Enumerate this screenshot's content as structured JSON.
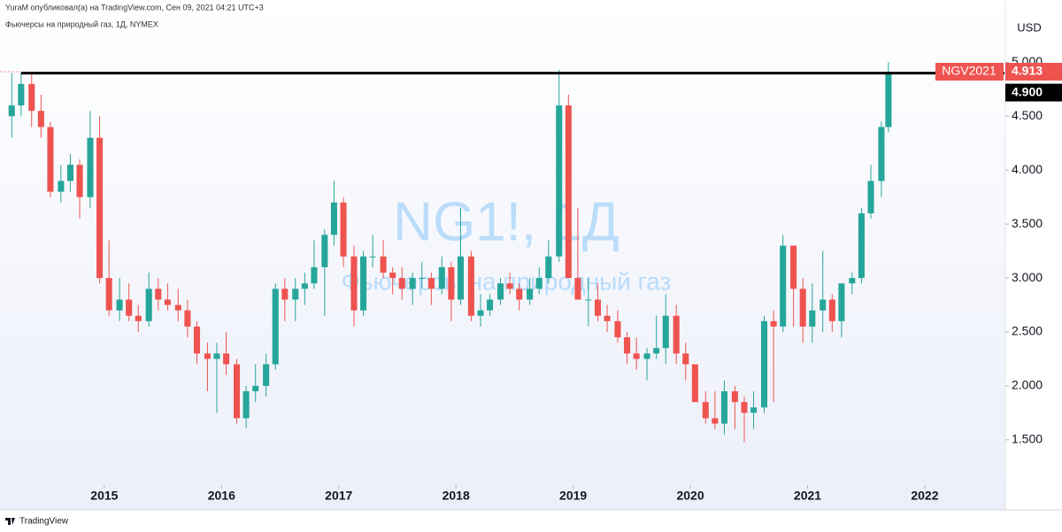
{
  "header": {
    "publisher": "YuraM опубликовал(а) на TradingView.com, Сен 09, 2021 04:21 UTC+3"
  },
  "footer": {
    "brand": "TradingView"
  },
  "chart_data": {
    "type": "candlestick",
    "title": "Фьючерсы на природный газ, 1Д, NYMEX",
    "watermark": "NG1!, 1Д",
    "watermark_subtitle": "Фьючерсы на природный газ",
    "currency": "USD",
    "up_color": "#26a69a",
    "down_color": "#ef5350",
    "x": [
      2014.21,
      2014.29,
      2014.38,
      2014.46,
      2014.54,
      2014.63,
      2014.71,
      2014.79,
      2014.88,
      2014.96,
      2015.04,
      2015.13,
      2015.21,
      2015.29,
      2015.38,
      2015.46,
      2015.54,
      2015.63,
      2015.71,
      2015.79,
      2015.88,
      2015.96,
      2016.04,
      2016.13,
      2016.21,
      2016.29,
      2016.38,
      2016.46,
      2016.54,
      2016.63,
      2016.71,
      2016.79,
      2016.88,
      2016.96,
      2017.04,
      2017.13,
      2017.21,
      2017.29,
      2017.38,
      2017.46,
      2017.54,
      2017.63,
      2017.71,
      2017.79,
      2017.88,
      2017.96,
      2018.04,
      2018.13,
      2018.21,
      2018.29,
      2018.38,
      2018.46,
      2018.54,
      2018.63,
      2018.71,
      2018.79,
      2018.88,
      2018.96,
      2019.04,
      2019.13,
      2019.21,
      2019.29,
      2019.38,
      2019.46,
      2019.54,
      2019.63,
      2019.71,
      2019.79,
      2019.88,
      2019.96,
      2020.04,
      2020.13,
      2020.21,
      2020.29,
      2020.38,
      2020.46,
      2020.54,
      2020.63,
      2020.71,
      2020.79,
      2020.88,
      2020.96,
      2021.04,
      2021.13,
      2021.21,
      2021.29,
      2021.38,
      2021.46,
      2021.54,
      2021.63,
      2021.69
    ],
    "candles": [
      [
        4.5,
        4.9,
        4.3,
        4.6
      ],
      [
        4.6,
        4.9,
        4.5,
        4.8
      ],
      [
        4.8,
        4.9,
        4.4,
        4.55
      ],
      [
        4.55,
        4.7,
        4.3,
        4.4
      ],
      [
        4.4,
        4.45,
        3.75,
        3.8
      ],
      [
        3.8,
        4.05,
        3.7,
        3.9
      ],
      [
        3.9,
        4.15,
        3.8,
        4.05
      ],
      [
        4.05,
        4.1,
        3.55,
        3.75
      ],
      [
        3.75,
        4.55,
        3.65,
        4.3
      ],
      [
        4.3,
        4.5,
        2.95,
        3.0
      ],
      [
        3.0,
        3.35,
        2.65,
        2.7
      ],
      [
        2.7,
        3.0,
        2.6,
        2.8
      ],
      [
        2.8,
        2.95,
        2.6,
        2.65
      ],
      [
        2.65,
        2.75,
        2.5,
        2.6
      ],
      [
        2.6,
        3.05,
        2.55,
        2.9
      ],
      [
        2.9,
        3.0,
        2.7,
        2.8
      ],
      [
        2.8,
        2.95,
        2.7,
        2.75
      ],
      [
        2.75,
        2.9,
        2.6,
        2.7
      ],
      [
        2.7,
        2.8,
        2.45,
        2.55
      ],
      [
        2.55,
        2.6,
        2.2,
        2.3
      ],
      [
        2.3,
        2.4,
        1.95,
        2.25
      ],
      [
        2.25,
        2.4,
        1.75,
        2.3
      ],
      [
        2.3,
        2.5,
        2.1,
        2.2
      ],
      [
        2.2,
        2.25,
        1.65,
        1.7
      ],
      [
        1.7,
        2.0,
        1.61,
        1.95
      ],
      [
        1.95,
        2.2,
        1.85,
        2.0
      ],
      [
        2.0,
        2.3,
        1.9,
        2.2
      ],
      [
        2.2,
        2.95,
        2.15,
        2.9
      ],
      [
        2.9,
        3.0,
        2.6,
        2.8
      ],
      [
        2.8,
        3.0,
        2.6,
        2.9
      ],
      [
        2.9,
        3.05,
        2.75,
        2.95
      ],
      [
        2.95,
        3.35,
        2.9,
        3.1
      ],
      [
        3.1,
        3.45,
        2.65,
        3.4
      ],
      [
        3.4,
        3.9,
        3.3,
        3.7
      ],
      [
        3.7,
        3.75,
        3.1,
        3.2
      ],
      [
        3.2,
        3.3,
        2.55,
        2.7
      ],
      [
        2.7,
        3.25,
        2.65,
        3.2
      ],
      [
        3.2,
        3.4,
        3.1,
        3.2
      ],
      [
        3.2,
        3.35,
        3.0,
        3.05
      ],
      [
        3.05,
        3.1,
        2.85,
        3.0
      ],
      [
        3.0,
        3.1,
        2.8,
        2.9
      ],
      [
        2.9,
        3.05,
        2.75,
        3.0
      ],
      [
        3.0,
        3.15,
        2.9,
        3.0
      ],
      [
        3.0,
        3.05,
        2.75,
        2.9
      ],
      [
        2.9,
        3.2,
        2.85,
        3.1
      ],
      [
        3.1,
        3.15,
        2.6,
        2.8
      ],
      [
        2.8,
        3.65,
        2.75,
        3.2
      ],
      [
        3.2,
        3.25,
        2.6,
        2.65
      ],
      [
        2.65,
        2.85,
        2.55,
        2.7
      ],
      [
        2.7,
        2.85,
        2.65,
        2.8
      ],
      [
        2.8,
        3.0,
        2.75,
        2.95
      ],
      [
        2.95,
        3.05,
        2.85,
        2.9
      ],
      [
        2.9,
        2.95,
        2.7,
        2.8
      ],
      [
        2.8,
        3.0,
        2.75,
        2.9
      ],
      [
        2.9,
        3.1,
        2.85,
        3.0
      ],
      [
        3.0,
        3.35,
        2.95,
        3.2
      ],
      [
        3.2,
        4.93,
        3.15,
        4.6
      ],
      [
        4.6,
        4.7,
        3.0,
        3.0
      ],
      [
        3.0,
        3.65,
        2.8,
        2.8
      ],
      [
        2.8,
        3.0,
        2.55,
        2.8
      ],
      [
        2.8,
        2.95,
        2.6,
        2.65
      ],
      [
        2.65,
        2.75,
        2.5,
        2.6
      ],
      [
        2.6,
        2.7,
        2.4,
        2.45
      ],
      [
        2.45,
        2.5,
        2.2,
        2.3
      ],
      [
        2.3,
        2.45,
        2.15,
        2.25
      ],
      [
        2.25,
        2.35,
        2.05,
        2.3
      ],
      [
        2.3,
        2.65,
        2.25,
        2.35
      ],
      [
        2.35,
        2.85,
        2.2,
        2.65
      ],
      [
        2.65,
        2.75,
        2.2,
        2.3
      ],
      [
        2.3,
        2.4,
        2.05,
        2.2
      ],
      [
        2.2,
        2.2,
        1.85,
        1.85
      ],
      [
        1.85,
        1.95,
        1.65,
        1.7
      ],
      [
        1.7,
        1.95,
        1.6,
        1.65
      ],
      [
        1.65,
        2.05,
        1.55,
        1.95
      ],
      [
        1.95,
        2.0,
        1.6,
        1.85
      ],
      [
        1.85,
        1.9,
        1.48,
        1.75
      ],
      [
        1.75,
        1.95,
        1.6,
        1.8
      ],
      [
        1.8,
        2.65,
        1.75,
        2.6
      ],
      [
        2.6,
        2.7,
        1.85,
        2.55
      ],
      [
        2.55,
        3.4,
        2.5,
        3.3
      ],
      [
        3.3,
        3.3,
        2.55,
        2.9
      ],
      [
        2.9,
        3.0,
        2.4,
        2.55
      ],
      [
        2.55,
        2.95,
        2.4,
        2.7
      ],
      [
        2.7,
        3.25,
        2.5,
        2.8
      ],
      [
        2.8,
        2.85,
        2.5,
        2.6
      ],
      [
        2.6,
        2.95,
        2.45,
        2.95
      ],
      [
        2.95,
        3.05,
        2.85,
        3.0
      ],
      [
        3.0,
        3.65,
        2.95,
        3.6
      ],
      [
        3.6,
        4.05,
        3.55,
        3.9
      ],
      [
        3.9,
        4.45,
        3.75,
        4.4
      ],
      [
        4.4,
        5.0,
        4.35,
        4.913
      ]
    ],
    "last_price": {
      "name": "NGV2021",
      "value": 4.913,
      "color": "#ef5350"
    },
    "hline": {
      "value": 4.9,
      "label": "4.900",
      "color": "#000000"
    },
    "xlim": [
      2014.11,
      2022.68
    ],
    "xticks": [
      2015,
      2016,
      2017,
      2018,
      2019,
      2020,
      2021,
      2022
    ],
    "ylim": [
      1.08,
      5.43
    ],
    "yticks": [
      {
        "value": 1.5,
        "label": "1.500"
      },
      {
        "value": 2,
        "label": "2.000"
      },
      {
        "value": 2.5,
        "label": "2.500"
      },
      {
        "value": 3,
        "label": "3.000"
      },
      {
        "value": 3.5,
        "label": "3.500"
      },
      {
        "value": 4,
        "label": "4.000"
      },
      {
        "value": 4.5,
        "label": "4.500"
      },
      {
        "value": 5,
        "label": "5.000"
      }
    ]
  }
}
